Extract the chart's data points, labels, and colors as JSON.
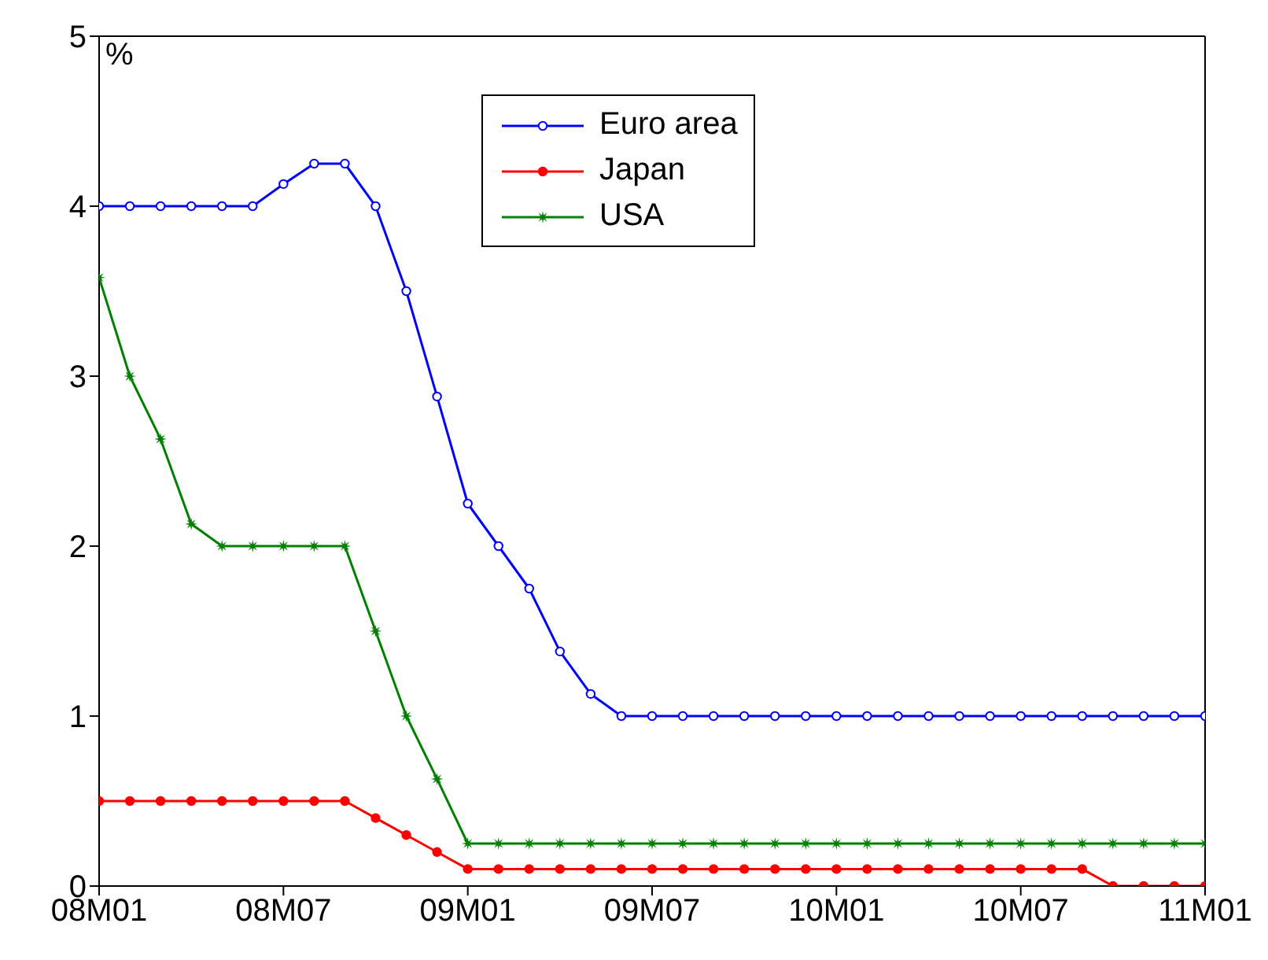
{
  "chart_data": {
    "type": "line",
    "ylabel": "%",
    "categories": [
      "08M01",
      null,
      null,
      null,
      null,
      null,
      "08M07",
      null,
      null,
      null,
      null,
      null,
      "09M01",
      null,
      null,
      null,
      null,
      null,
      "09M07",
      null,
      null,
      null,
      null,
      null,
      "10M01",
      null,
      null,
      null,
      null,
      null,
      "10M07",
      null,
      null,
      null,
      null,
      null,
      "11M01"
    ],
    "series": [
      {
        "name": "Euro area",
        "color": "#0000ff",
        "marker": "circle",
        "values": [
          4,
          4,
          4,
          4,
          4,
          4,
          4.13,
          4.25,
          4.25,
          4,
          3.5,
          2.88,
          2.25,
          2,
          1.75,
          1.38,
          1.13,
          1,
          1,
          1,
          1,
          1,
          1,
          1,
          1,
          1,
          1,
          1,
          1,
          1,
          1,
          1,
          1,
          1,
          1,
          1,
          1
        ]
      },
      {
        "name": "Japan",
        "color": "#ff0000",
        "marker": "circle",
        "values": [
          0.5,
          0.5,
          0.5,
          0.5,
          0.5,
          0.5,
          0.5,
          0.5,
          0.5,
          0.4,
          0.3,
          0.2,
          0.1,
          0.1,
          0.1,
          0.1,
          0.1,
          0.1,
          0.1,
          0.1,
          0.1,
          0.1,
          0.1,
          0.1,
          0.1,
          0.1,
          0.1,
          0.1,
          0.1,
          0.1,
          0.1,
          0.1,
          0.1,
          0,
          0,
          0,
          0
        ]
      },
      {
        "name": "USA",
        "color": "#008000",
        "marker": "star",
        "values": [
          3.58,
          3,
          2.63,
          2.13,
          2,
          2,
          2,
          2,
          2,
          1.5,
          1,
          0.63,
          0.25,
          0.25,
          0.25,
          0.25,
          0.25,
          0.25,
          0.25,
          0.25,
          0.25,
          0.25,
          0.25,
          0.25,
          0.25,
          0.25,
          0.25,
          0.25,
          0.25,
          0.25,
          0.25,
          0.25,
          0.25,
          0.25,
          0.25,
          0.25,
          0.25
        ]
      }
    ],
    "ylim": [
      0,
      5
    ],
    "yticks": [
      0,
      1,
      2,
      3,
      4,
      5
    ],
    "grid": false,
    "legend": "top",
    "line_style": "solid"
  }
}
